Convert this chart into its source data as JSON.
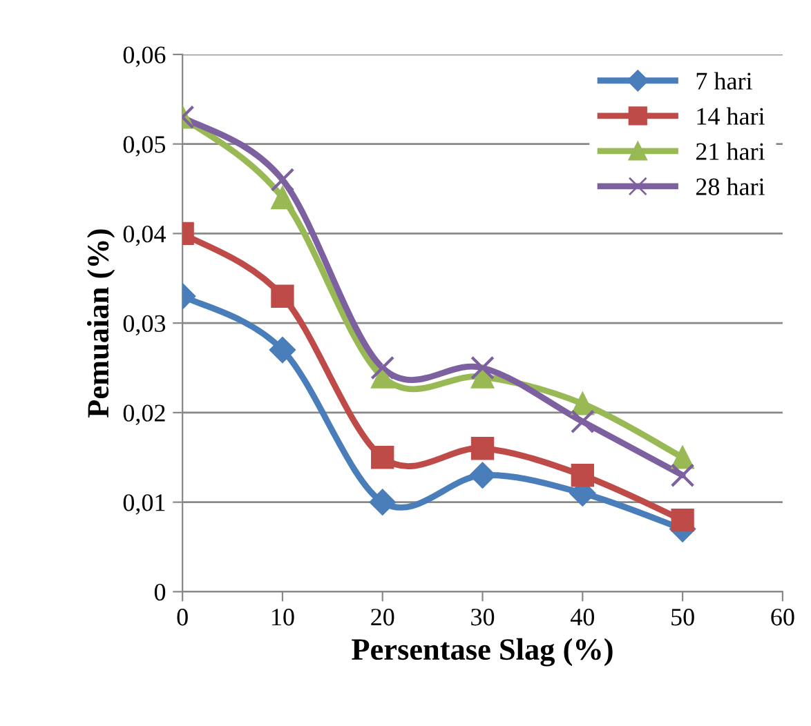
{
  "chart_data": {
    "type": "line",
    "xlabel": "Persentase Slag (%)",
    "ylabel": "Pemuaian (%)",
    "x": [
      0,
      10,
      20,
      30,
      40,
      50
    ],
    "series": [
      {
        "name": "7 hari",
        "color": "#4a7ebb",
        "marker": "diamond",
        "values": [
          0.033,
          0.027,
          0.01,
          0.013,
          0.011,
          0.007
        ]
      },
      {
        "name": "14 hari",
        "color": "#be4b48",
        "marker": "square",
        "values": [
          0.04,
          0.033,
          0.015,
          0.016,
          0.013,
          0.008
        ]
      },
      {
        "name": "21 hari",
        "color": "#98b954",
        "marker": "triangle",
        "values": [
          0.053,
          0.044,
          0.024,
          0.024,
          0.021,
          0.015
        ]
      },
      {
        "name": "28 hari",
        "color": "#7d60a0",
        "marker": "cross",
        "values": [
          0.053,
          0.046,
          0.025,
          0.025,
          0.019,
          0.013
        ]
      }
    ],
    "xlim": [
      0,
      60
    ],
    "xticks": [
      0,
      10,
      20,
      30,
      40,
      50,
      60
    ],
    "ylim": [
      0,
      0.06
    ],
    "yticks": [
      0,
      {
        "value": 0.01,
        "label": "0,01"
      },
      {
        "value": 0.02,
        "label": "0,02"
      },
      {
        "value": 0.03,
        "label": "0,03"
      },
      {
        "value": 0.04,
        "label": "0,04"
      },
      {
        "value": 0.05,
        "label": "0,05"
      },
      {
        "value": 0.06,
        "label": "0,06"
      }
    ],
    "grid": "y",
    "legend": "top right",
    "line_style": "solid"
  }
}
